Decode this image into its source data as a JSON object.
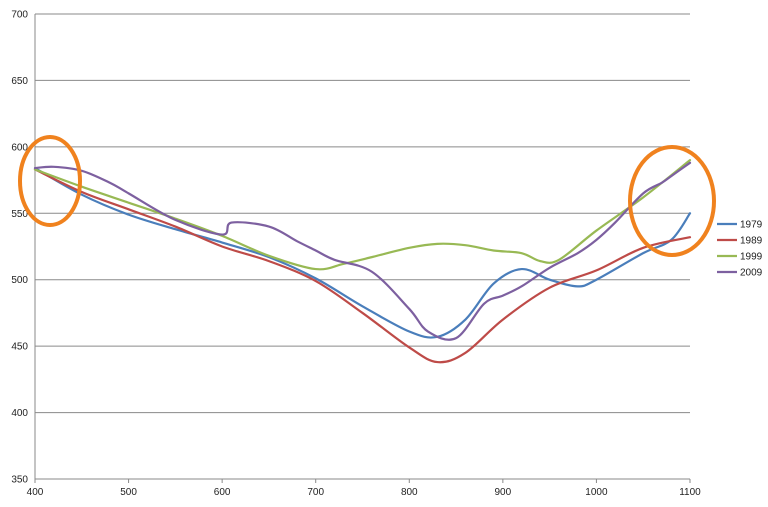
{
  "chart_data": {
    "type": "line",
    "title": "",
    "xlabel": "",
    "ylabel": "",
    "xlim": [
      400,
      1100
    ],
    "ylim": [
      350,
      700
    ],
    "xticks": [
      400,
      500,
      600,
      700,
      800,
      900,
      1000,
      1100
    ],
    "yticks": [
      350,
      400,
      450,
      500,
      550,
      600,
      650,
      700
    ],
    "grid": "horizontal",
    "legend_position": "right",
    "series": [
      {
        "name": "1979",
        "color": "#4a7ebb",
        "x": [
          400,
          450,
          500,
          550,
          600,
          650,
          700,
          750,
          800,
          830,
          860,
          890,
          920,
          950,
          980,
          1000,
          1050,
          1080,
          1100
        ],
        "y": [
          584,
          564,
          549,
          538,
          528,
          517,
          501,
          480,
          461,
          457,
          470,
          497,
          508,
          500,
          495,
          500,
          520,
          530,
          550
        ]
      },
      {
        "name": "1989",
        "color": "#be4b48",
        "x": [
          400,
          450,
          500,
          550,
          600,
          650,
          700,
          750,
          800,
          830,
          860,
          900,
          950,
          1000,
          1050,
          1100
        ],
        "y": [
          583,
          566,
          553,
          540,
          525,
          514,
          499,
          475,
          449,
          438,
          445,
          470,
          494,
          507,
          524,
          532
        ]
      },
      {
        "name": "1999",
        "color": "#98b954",
        "x": [
          400,
          450,
          500,
          550,
          600,
          650,
          700,
          730,
          760,
          800,
          830,
          860,
          890,
          920,
          940,
          960,
          1000,
          1050,
          1100
        ],
        "y": [
          583,
          570,
          558,
          546,
          533,
          518,
          508,
          512,
          517,
          524,
          527,
          526,
          522,
          520,
          514,
          515,
          537,
          562,
          590
        ]
      },
      {
        "name": "2009",
        "color": "#7d60a0",
        "x": [
          400,
          420,
          450,
          480,
          500,
          550,
          600,
          610,
          650,
          680,
          700,
          720,
          760,
          800,
          820,
          850,
          880,
          900,
          920,
          950,
          980,
          1000,
          1020,
          1050,
          1070,
          1080,
          1100
        ],
        "y": [
          584,
          585,
          582,
          573,
          565,
          545,
          534,
          543,
          540,
          529,
          522,
          515,
          506,
          478,
          461,
          456,
          482,
          488,
          495,
          509,
          520,
          530,
          543,
          565,
          573,
          578,
          588
        ]
      }
    ],
    "annotations": [
      {
        "shape": "ellipse",
        "color": "#f0821e",
        "region": "left-edge"
      },
      {
        "shape": "ellipse",
        "color": "#f0821e",
        "region": "right-edge"
      }
    ]
  }
}
